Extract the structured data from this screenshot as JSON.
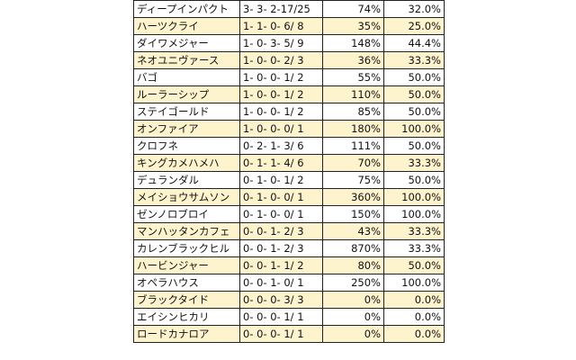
{
  "rows": [
    {
      "name": "ディープインパクト",
      "record": "3- 3- 2-17/25",
      "recovery": "74%",
      "rate": "32.0%",
      "shaded": false
    },
    {
      "name": "ハーツクライ",
      "record": "1- 1- 0- 6/ 8",
      "recovery": "35%",
      "rate": "25.0%",
      "shaded": true
    },
    {
      "name": "ダイワメジャー",
      "record": "1- 0- 3- 5/ 9",
      "recovery": "148%",
      "rate": "44.4%",
      "shaded": false
    },
    {
      "name": "ネオユニヴァース",
      "record": "1- 0- 0- 2/ 3",
      "recovery": "36%",
      "rate": "33.3%",
      "shaded": true
    },
    {
      "name": "バゴ",
      "record": "1- 0- 0- 1/ 2",
      "recovery": "55%",
      "rate": "50.0%",
      "shaded": false
    },
    {
      "name": "ルーラーシップ",
      "record": "1- 0- 0- 1/ 2",
      "recovery": "110%",
      "rate": "50.0%",
      "shaded": true
    },
    {
      "name": "ステイゴールド",
      "record": "1- 0- 0- 1/ 2",
      "recovery": "85%",
      "rate": "50.0%",
      "shaded": false
    },
    {
      "name": "オンファイア",
      "record": "1- 0- 0- 0/ 1",
      "recovery": "180%",
      "rate": "100.0%",
      "shaded": true
    },
    {
      "name": "クロフネ",
      "record": "0- 2- 1- 3/ 6",
      "recovery": "111%",
      "rate": "50.0%",
      "shaded": false
    },
    {
      "name": "キングカメハメハ",
      "record": "0- 1- 1- 4/ 6",
      "recovery": "70%",
      "rate": "33.3%",
      "shaded": true
    },
    {
      "name": "デュランダル",
      "record": "0- 1- 0- 1/ 2",
      "recovery": "75%",
      "rate": "50.0%",
      "shaded": false
    },
    {
      "name": "メイショウサムソン",
      "record": "0- 1- 0- 0/ 1",
      "recovery": "360%",
      "rate": "100.0%",
      "shaded": true
    },
    {
      "name": "ゼンノロブロイ",
      "record": "0- 1- 0- 0/ 1",
      "recovery": "150%",
      "rate": "100.0%",
      "shaded": false
    },
    {
      "name": "マンハッタンカフェ",
      "record": "0- 0- 1- 2/ 3",
      "recovery": "43%",
      "rate": "33.3%",
      "shaded": true
    },
    {
      "name": "カレンブラックヒル",
      "record": "0- 0- 1- 2/ 3",
      "recovery": "870%",
      "rate": "33.3%",
      "shaded": false
    },
    {
      "name": "ハービンジャー",
      "record": "0- 0- 1- 1/ 2",
      "recovery": "80%",
      "rate": "50.0%",
      "shaded": true
    },
    {
      "name": "オペラハウス",
      "record": "0- 0- 1- 0/ 1",
      "recovery": "250%",
      "rate": "100.0%",
      "shaded": false
    },
    {
      "name": "ブラックタイド",
      "record": "0- 0- 0- 3/ 3",
      "recovery": "0%",
      "rate": "0.0%",
      "shaded": true
    },
    {
      "name": "エイシンヒカリ",
      "record": "0- 0- 0- 1/ 1",
      "recovery": "0%",
      "rate": "0.0%",
      "shaded": false
    },
    {
      "name": "ロードカナロア",
      "record": "0- 0- 0- 1/ 1",
      "recovery": "0%",
      "rate": "0.0%",
      "shaded": true
    }
  ]
}
